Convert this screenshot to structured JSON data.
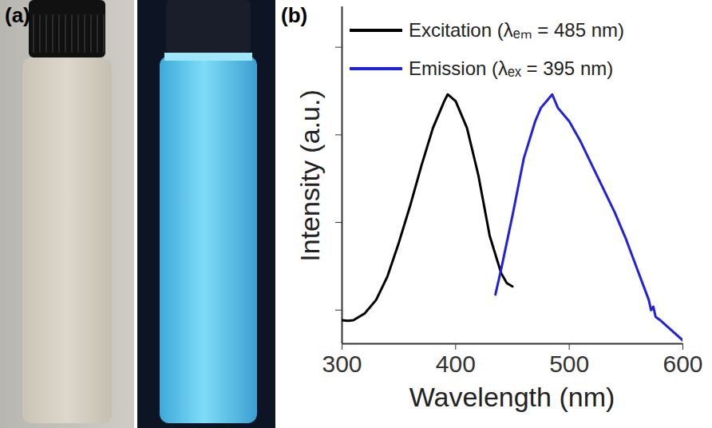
{
  "panel_a": {
    "label": "(a)"
  },
  "chart_data": {
    "type": "line",
    "panel_label": "(b)",
    "xlabel": "Wavelength (nm)",
    "ylabel": "Intensity (a.u.)",
    "xlim": [
      300,
      600
    ],
    "xticks": [
      300,
      400,
      500,
      600
    ],
    "ylim": [
      0,
      1
    ],
    "yticks": [
      0.1,
      0.36,
      0.62,
      0.88
    ],
    "tick_labels": "x",
    "legend": "upper left",
    "series": [
      {
        "name": "Excitation (λₑₘ = 485 nm)",
        "color": "#000000",
        "x": [
          300,
          305,
          310,
          320,
          330,
          340,
          350,
          360,
          370,
          380,
          390,
          393,
          400,
          410,
          420,
          430,
          440,
          445,
          450
        ],
        "values": [
          0.07,
          0.068,
          0.07,
          0.09,
          0.13,
          0.2,
          0.3,
          0.41,
          0.53,
          0.64,
          0.72,
          0.74,
          0.72,
          0.64,
          0.5,
          0.32,
          0.21,
          0.18,
          0.17
        ]
      },
      {
        "name": "Emission (λₑₓ = 395 nm)",
        "color": "#2020e0",
        "x": [
          435,
          440,
          450,
          460,
          470,
          475,
          480,
          485,
          490,
          500,
          510,
          520,
          530,
          540,
          550,
          560,
          570,
          572,
          574,
          576,
          580,
          590,
          600
        ],
        "values": [
          0.146,
          0.22,
          0.38,
          0.55,
          0.66,
          0.7,
          0.72,
          0.74,
          0.7,
          0.66,
          0.6,
          0.53,
          0.46,
          0.39,
          0.31,
          0.22,
          0.13,
          0.1,
          0.11,
          0.08,
          0.07,
          0.04,
          0.01
        ]
      }
    ]
  }
}
